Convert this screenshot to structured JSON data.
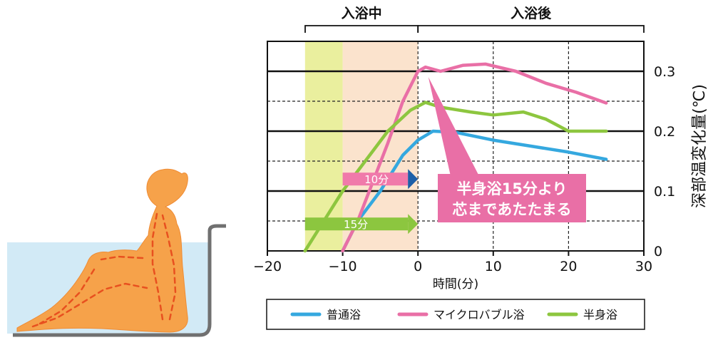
{
  "chart_data": {
    "type": "line",
    "xlabel": "時間(分)",
    "ylabel": "深部温変化量(℃)",
    "xlim": [
      -20,
      30
    ],
    "ylim": [
      0,
      0.35
    ],
    "xticks": [
      -20,
      -10,
      0,
      10,
      20,
      30
    ],
    "xtick_labels": [
      "−20",
      "−10",
      "0",
      "10",
      "20",
      "30"
    ],
    "yticks": [
      0,
      0.1,
      0.2,
      0.3
    ],
    "ytick_labels": [
      "0",
      "0.1",
      "0.2",
      "0.3"
    ],
    "grid": {
      "horizontal_solid": [
        0.1,
        0.2,
        0.3
      ],
      "horizontal_dashed": [
        0.05,
        0.15,
        0.25
      ],
      "vertical_dashed": [
        0,
        10,
        20
      ]
    },
    "phases": [
      {
        "label": "入浴中",
        "x_start": -20,
        "x_end": 0
      },
      {
        "label": "入浴後",
        "x_start": 0,
        "x_end": 30
      }
    ],
    "shaded_regions": [
      {
        "x_start": -15,
        "x_end": -10,
        "color": "#eaef9e"
      },
      {
        "x_start": -10,
        "x_end": 0,
        "color": "#fbe3cd"
      }
    ],
    "series": [
      {
        "name": "普通浴",
        "color": "#35a8df",
        "points": [
          [
            -10,
            0
          ],
          [
            -8,
            0.05
          ],
          [
            -5,
            0.1
          ],
          [
            -2,
            0.16
          ],
          [
            0,
            0.185
          ],
          [
            2,
            0.2
          ],
          [
            5,
            0.198
          ],
          [
            10,
            0.185
          ],
          [
            15,
            0.175
          ],
          [
            20,
            0.165
          ],
          [
            25,
            0.153
          ]
        ]
      },
      {
        "name": "マイクロバブル浴",
        "color": "#e96fa6",
        "points": [
          [
            -10,
            0
          ],
          [
            -8,
            0.05
          ],
          [
            -6,
            0.115
          ],
          [
            -4,
            0.18
          ],
          [
            -2,
            0.25
          ],
          [
            0,
            0.3
          ],
          [
            1,
            0.307
          ],
          [
            3,
            0.3
          ],
          [
            6,
            0.31
          ],
          [
            9,
            0.312
          ],
          [
            13,
            0.3
          ],
          [
            17,
            0.28
          ],
          [
            21,
            0.265
          ],
          [
            25,
            0.247
          ]
        ]
      },
      {
        "name": "半身浴",
        "color": "#8dc63f",
        "points": [
          [
            -15,
            0
          ],
          [
            -13,
            0.04
          ],
          [
            -10,
            0.1
          ],
          [
            -7,
            0.15
          ],
          [
            -4,
            0.2
          ],
          [
            -1,
            0.235
          ],
          [
            1,
            0.248
          ],
          [
            3,
            0.24
          ],
          [
            7,
            0.232
          ],
          [
            10,
            0.227
          ],
          [
            14,
            0.232
          ],
          [
            17,
            0.22
          ],
          [
            20,
            0.2
          ],
          [
            25,
            0.2
          ]
        ]
      }
    ],
    "duration_arrows": [
      {
        "label": "10分",
        "x_start": -10,
        "x_end": 0,
        "y": 0.12,
        "color": "#f07aaa",
        "tip_color": "#1d5fa8"
      },
      {
        "label": "15分",
        "x_start": -15,
        "x_end": 0,
        "y": 0.045,
        "color": "#8cc63f",
        "tip_color": "#8cc63f"
      }
    ],
    "annotation": {
      "lines": [
        "半身浴15分より",
        "芯まであたたまる"
      ],
      "color": "#e96fa6",
      "points_to": [
        1,
        0.3
      ]
    },
    "legend": {
      "position": "bottom"
    }
  },
  "colors": {
    "water": "#d2eaf6",
    "tub": "#707070",
    "figure": "#f6a24a",
    "figure_dark": "#ef8b33",
    "flow_arrows": "#e8501f"
  }
}
